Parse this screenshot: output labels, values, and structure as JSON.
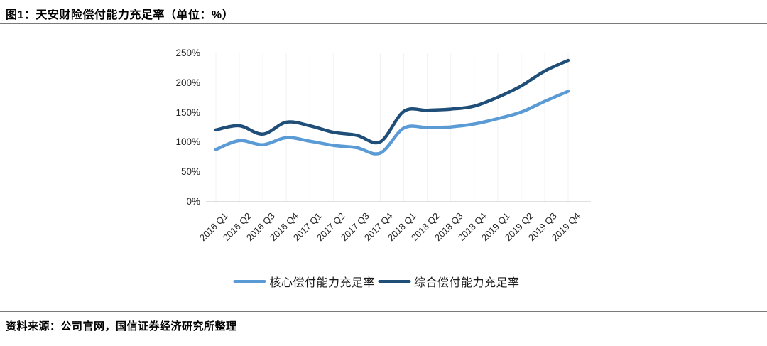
{
  "figure": {
    "title": "图1：天安财险偿付能力充足率（单位：%）",
    "source": "资料来源：公司官网，国信证券经济研究所整理"
  },
  "chart_data": {
    "type": "line",
    "title": "天安财险偿付能力充足率",
    "unit": "%",
    "categories": [
      "2016 Q1",
      "2016 Q2",
      "2016 Q3",
      "2016 Q4",
      "2017 Q1",
      "2017 Q2",
      "2017 Q3",
      "2017 Q4",
      "2018 Q1",
      "2018 Q2",
      "2018 Q3",
      "2018 Q4",
      "2019 Q1",
      "2019 Q2",
      "2019 Q3",
      "2019 Q4"
    ],
    "series": [
      {
        "name": "核心偿付能力充足率",
        "color": "#5b9bd5",
        "values": [
          88,
          103,
          96,
          108,
          102,
          95,
          91,
          82,
          124,
          125,
          126,
          131,
          140,
          151,
          169,
          186
        ]
      },
      {
        "name": "综合偿付能力充足率",
        "color": "#1f4e79",
        "values": [
          121,
          128,
          114,
          134,
          128,
          117,
          112,
          101,
          152,
          154,
          156,
          161,
          176,
          195,
          220,
          238
        ]
      }
    ],
    "y_ticks": [
      {
        "label": "0%",
        "value": 0
      },
      {
        "label": "50%",
        "value": 50
      },
      {
        "label": "100%",
        "value": 100
      },
      {
        "label": "150%",
        "value": 150
      },
      {
        "label": "200%",
        "value": 200
      },
      {
        "label": "250%",
        "value": 250
      }
    ],
    "ylim": [
      0,
      250
    ],
    "legend_position": "bottom",
    "grid": "vertical-faint",
    "gridline_color": "#f2f2f2",
    "axis_color": "#d6d6d6"
  }
}
